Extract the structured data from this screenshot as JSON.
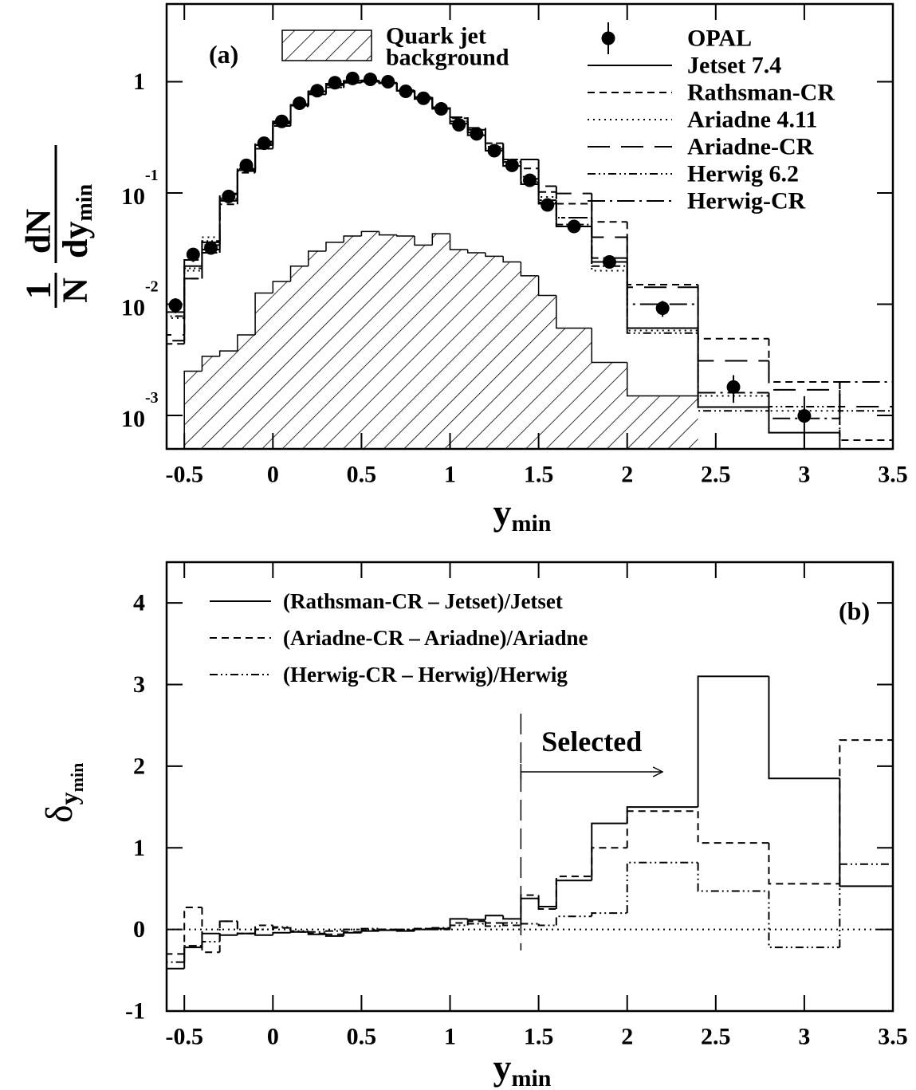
{
  "chart_data": [
    {
      "type": "histogram",
      "panel_label": "(a)",
      "xlabel": {
        "text": "y",
        "sub": "min"
      },
      "ylabel": {
        "num1": "1",
        "den1": "N",
        "num2": "dN",
        "den2": "dy",
        "sub": "min"
      },
      "bins": [
        -0.6,
        -0.5,
        -0.4,
        -0.3,
        -0.2,
        -0.1,
        0,
        0.1,
        0.2,
        0.3,
        0.4,
        0.5,
        0.6,
        0.7,
        0.8,
        0.9,
        1.0,
        1.1,
        1.2,
        1.3,
        1.4,
        1.5,
        1.6,
        1.8,
        2.0,
        2.4,
        2.8,
        3.2,
        3.6
      ],
      "xlim": [
        -0.6,
        3.5
      ],
      "xticks": [
        -0.5,
        0,
        0.5,
        1,
        1.5,
        2,
        2.5,
        3,
        3.5
      ],
      "log_y": true,
      "ylim": [
        0.0005,
        5
      ],
      "yticks": [
        {
          "value": 0.001,
          "label": "10",
          "exponent": "-3"
        },
        {
          "value": 0.01,
          "label": "10",
          "exponent": "-2"
        },
        {
          "value": 0.1,
          "label": "10",
          "exponent": "-1"
        },
        1
      ],
      "points": {
        "name": "OPAL",
        "color": "#000000",
        "x": [
          -0.55,
          -0.45,
          -0.35,
          -0.25,
          -0.15,
          -0.05,
          0.05,
          0.15,
          0.25,
          0.35,
          0.45,
          0.55,
          0.65,
          0.75,
          0.85,
          0.95,
          1.05,
          1.15,
          1.25,
          1.35,
          1.45,
          1.55,
          1.7,
          1.9,
          2.2,
          2.6,
          3.0
        ],
        "values": [
          0.0098,
          0.028,
          0.032,
          0.093,
          0.177,
          0.28,
          0.44,
          0.64,
          0.83,
          0.98,
          1.07,
          1.05,
          1.0,
          0.82,
          0.71,
          0.57,
          0.41,
          0.34,
          0.24,
          0.177,
          0.13,
          0.078,
          0.05,
          0.024,
          0.0092,
          0.0018,
          0.00099
        ],
        "errors": [
          0.0015,
          0.004,
          0.004,
          0.008,
          0.012,
          0.015,
          0.02,
          0.025,
          0.03,
          0.03,
          0.03,
          0.03,
          0.03,
          0.03,
          0.03,
          0.025,
          0.02,
          0.02,
          0.015,
          0.012,
          0.01,
          0.007,
          0.005,
          0.003,
          0.0015,
          0.0005,
          0.0005
        ]
      },
      "background": {
        "name": [
          "Quark jet",
          "background"
        ],
        "color": "#000000",
        "values": [
          null,
          0.0025,
          0.0034,
          0.0038,
          0.0053,
          0.0126,
          0.016,
          0.022,
          0.03,
          0.036,
          0.041,
          0.045,
          0.042,
          0.041,
          0.034,
          0.043,
          0.031,
          0.029,
          0.027,
          0.024,
          0.018,
          0.012,
          0.0061,
          0.003,
          0.0015,
          null,
          null,
          null
        ]
      },
      "series": [
        {
          "name": "Jetset 7.4",
          "color": "#000000",
          "style": "solid",
          "values": [
            0.0085,
            0.022,
            0.036,
            0.085,
            0.16,
            0.27,
            0.42,
            0.62,
            0.82,
            0.96,
            1.02,
            1.02,
            0.98,
            0.83,
            0.7,
            0.57,
            0.42,
            0.33,
            0.24,
            0.175,
            0.12,
            0.08,
            0.05,
            0.024,
            0.0061,
            0.00119,
            0.0007,
            0.0004
          ]
        },
        {
          "name": "Rathsman-CR",
          "color": "#000000",
          "style": "dashed",
          "values": [
            0.0044,
            0.017,
            0.034,
            0.079,
            0.152,
            0.25,
            0.4,
            0.6,
            0.77,
            0.88,
            0.98,
            1.0,
            0.97,
            0.81,
            0.7,
            0.58,
            0.47,
            0.37,
            0.28,
            0.2,
            0.166,
            0.102,
            0.08,
            0.055,
            0.015,
            0.0049,
            0.002,
            0.0006
          ]
        },
        {
          "name": "Ariadne 4.11",
          "color": "#000000",
          "style": "dotted",
          "values": [
            0.0075,
            0.02,
            0.04,
            0.09,
            0.17,
            0.28,
            0.43,
            0.63,
            0.82,
            0.95,
            1.01,
            1.01,
            0.97,
            0.84,
            0.72,
            0.59,
            0.44,
            0.35,
            0.26,
            0.19,
            0.14,
            0.092,
            0.06,
            0.02,
            0.0058,
            0.0015,
            0.0011,
            0.00036
          ]
        },
        {
          "name": "Ariadne-CR",
          "color": "#000000",
          "style": "longdash",
          "values": [
            0.0053,
            0.025,
            0.029,
            0.099,
            0.16,
            0.29,
            0.44,
            0.61,
            0.78,
            0.89,
            0.98,
            1.0,
            0.97,
            0.83,
            0.73,
            0.59,
            0.48,
            0.385,
            0.28,
            0.2,
            0.2,
            0.115,
            0.099,
            0.04,
            0.0142,
            0.0031,
            0.0017,
            0.0012
          ]
        },
        {
          "name": "Herwig 6.2",
          "color": "#000000",
          "style": "dashdotdot",
          "values": [
            0.0078,
            0.021,
            0.037,
            0.088,
            0.165,
            0.27,
            0.42,
            0.62,
            0.81,
            0.95,
            1.01,
            1.02,
            0.98,
            0.83,
            0.71,
            0.57,
            0.42,
            0.33,
            0.24,
            0.175,
            0.125,
            0.082,
            0.052,
            0.022,
            0.0055,
            0.0011,
            0.0012,
            0.0011
          ]
        },
        {
          "name": "Herwig-CR",
          "color": "#000000",
          "style": "dashdot",
          "values": [
            0.0047,
            0.017,
            0.031,
            0.097,
            0.157,
            0.27,
            0.43,
            0.61,
            0.79,
            0.93,
            1.01,
            1.03,
            0.98,
            0.83,
            0.72,
            0.58,
            0.44,
            0.35,
            0.25,
            0.19,
            0.134,
            0.086,
            0.06,
            0.026,
            0.01,
            0.0016,
            0.00094,
            0.002
          ]
        }
      ]
    },
    {
      "type": "histogram",
      "panel_label": "(b)",
      "xlabel": {
        "text": "y",
        "sub": "min"
      },
      "ylabel": {
        "text": "δ",
        "sub": "y",
        "subsub": "min"
      },
      "bins": [
        -0.6,
        -0.5,
        -0.4,
        -0.3,
        -0.2,
        -0.1,
        0,
        0.1,
        0.2,
        0.3,
        0.4,
        0.5,
        0.6,
        0.7,
        0.8,
        0.9,
        1.0,
        1.1,
        1.2,
        1.3,
        1.4,
        1.5,
        1.6,
        1.8,
        2.0,
        2.4,
        2.8,
        3.2,
        3.6
      ],
      "xlim": [
        -0.6,
        3.5
      ],
      "xticks": [
        -0.5,
        0,
        0.5,
        1,
        1.5,
        2,
        2.5,
        3,
        3.5
      ],
      "ylim": [
        -1,
        4.5
      ],
      "yticks": [
        -1,
        0,
        1,
        2,
        3,
        4
      ],
      "reference_line": {
        "value": 0,
        "style": "dotted"
      },
      "annotation": {
        "text": "Selected",
        "x": 1.4,
        "arrow_to": 2.2
      },
      "series": [
        {
          "name": "(Rathsman-CR – Jetset)/Jetset",
          "color": "#000000",
          "style": "solid",
          "values": [
            -0.48,
            -0.22,
            -0.05,
            -0.07,
            -0.05,
            -0.07,
            -0.04,
            -0.03,
            -0.06,
            -0.08,
            -0.04,
            -0.02,
            -0.01,
            -0.02,
            0.0,
            0.01,
            0.13,
            0.12,
            0.17,
            0.13,
            0.38,
            0.28,
            0.6,
            1.3,
            1.5,
            3.1,
            1.85,
            0.53
          ]
        },
        {
          "name": "(Ariadne-CR – Ariadne)/Ariadne",
          "color": "#000000",
          "style": "dashed",
          "values": [
            -0.3,
            0.27,
            -0.28,
            0.1,
            -0.05,
            0.05,
            0.02,
            -0.03,
            -0.05,
            -0.06,
            -0.03,
            -0.01,
            0.0,
            -0.01,
            0.01,
            0.0,
            0.08,
            0.1,
            0.08,
            0.05,
            0.42,
            0.25,
            0.65,
            1.0,
            1.45,
            1.06,
            0.56,
            2.32
          ]
        },
        {
          "name": "(Herwig-CR – Herwig)/Herwig",
          "color": "#000000",
          "style": "dashdotdot",
          "values": [
            -0.4,
            -0.2,
            -0.15,
            0.1,
            -0.05,
            0.0,
            0.03,
            -0.02,
            -0.03,
            -0.02,
            0.0,
            0.01,
            0.0,
            0.0,
            0.01,
            0.02,
            0.05,
            0.07,
            0.04,
            0.08,
            0.07,
            0.05,
            0.16,
            0.2,
            0.82,
            0.47,
            -0.22,
            0.8
          ]
        }
      ]
    }
  ]
}
